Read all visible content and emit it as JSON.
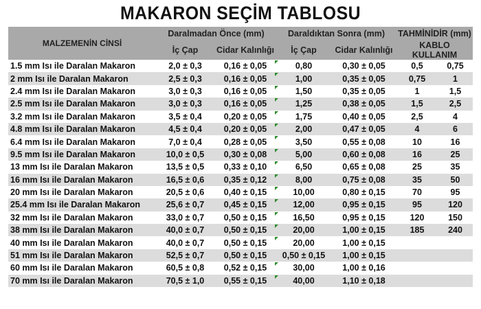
{
  "title": "MAKARON SEÇİM TABLOSU",
  "headers": {
    "material": "MALZEMENİN CİNSİ",
    "before": "Daralmadan Önce (mm)",
    "after": "Daraldıktan Sonra (mm)",
    "estimate": "TAHMİNİDİR (mm)",
    "inner_before": "İç Çap",
    "wall_before": "Cidar Kalınlığı",
    "inner_after": "İç Çap",
    "wall_after": "Cidar Kalınlığı",
    "cable": "KABLO KULLANIM"
  },
  "rows": [
    [
      "1.5 mm Isı ile Daralan Makaron",
      "2,0 ± 0,3",
      "0,16 ± 0,05",
      "0,80",
      "0,30 ± 0,05",
      "0,5",
      "0,75"
    ],
    [
      "2 mm Isı ile Daralan Makaron",
      "2,5 ± 0,3",
      "0,16 ± 0,05",
      "1,00",
      "0,35 ± 0,05",
      "0,75",
      "1"
    ],
    [
      "2.4 mm Isı ile Daralan Makaron",
      "3,0 ± 0,3",
      "0,16 ± 0,05",
      "1,50",
      "0,35 ± 0,05",
      "1",
      "1,5"
    ],
    [
      "2.5 mm Isı ile Daralan Makaron",
      "3,0 ± 0,3",
      "0,16 ± 0,05",
      "1,25",
      "0,38 ± 0,05",
      "1,5",
      "2,5"
    ],
    [
      "3.2 mm Isı ile Daralan Makaron",
      "3,5 ± 0,4",
      "0,20 ± 0,05",
      "1,75",
      "0,40 ± 0,05",
      "2,5",
      "4"
    ],
    [
      "4.8 mm Isı ile Daralan Makaron",
      "4,5 ± 0,4",
      "0,20 ± 0,05",
      "2,00",
      "0,47 ± 0,05",
      "4",
      "6"
    ],
    [
      "6.4 mm Isı ile Daralan Makaron",
      "7,0 ± 0,4",
      "0,28 ± 0,05",
      "3,50",
      "0,55 ± 0,08",
      "10",
      "16"
    ],
    [
      "9.5 mm Isı ile Daralan Makaron",
      "10,0 ± 0,5",
      "0,30 ± 0,08",
      "5,00",
      "0,60 ± 0,08",
      "16",
      "25"
    ],
    [
      "13 mm Isı ile Daralan Makaron",
      "13,5 ± 0,5",
      "0,33 ± 0,10",
      "6,50",
      "0,65 ± 0,08",
      "25",
      "35"
    ],
    [
      "16 mm Isı ile Daralan Makaron",
      "16,5 ± 0,6",
      "0,35 ± 0,12",
      "8,00",
      "0,75 ± 0,08",
      "35",
      "50"
    ],
    [
      "20 mm Isı ile Daralan Makaron",
      "20,5 ± 0,6",
      "0,40 ± 0,15",
      "10,00",
      "0,80 ± 0,15",
      "70",
      "95"
    ],
    [
      "25.4 mm Isı ile Daralan Makaron",
      "25,6 ± 0,7",
      "0,45 ± 0,15",
      "12,00",
      "0,95 ± 0,15",
      "95",
      "120"
    ],
    [
      "32 mm Isı ile Daralan Makaron",
      "33,0 ± 0,7",
      "0,50 ± 0,15",
      "16,50",
      "0,95 ± 0,15",
      "120",
      "150"
    ],
    [
      "38 mm Isı ile Daralan Makaron",
      "40,0 ± 0,7",
      "0,50 ± 0,15",
      "20,00",
      "1,00 ± 0,15",
      "185",
      "240"
    ],
    [
      "40 mm Isı ile Daralan Makaron",
      "40,0 ± 0,7",
      "0,50 ± 0,15",
      "20,00",
      "1,00 ± 0,15",
      "",
      ""
    ],
    [
      "51 mm Isı ile Daralan Makaron",
      "52,5 ± 0,7",
      "0,50 ± 0,15",
      "0,50 ± 0,15",
      "1,00 ± 0,15",
      "",
      ""
    ],
    [
      "60 mm Isı ile Daralan Makaron",
      "60,5 ± 0,8",
      "0,52 ± 0,15",
      "30,00",
      "1,00 ± 0,16",
      "",
      ""
    ],
    [
      "70 mm Isı ile Daralan Makaron",
      "70,5 ± 1,0",
      "0,55 ± 0,15",
      "40,00",
      "1,10 ± 0,18",
      "",
      ""
    ]
  ]
}
